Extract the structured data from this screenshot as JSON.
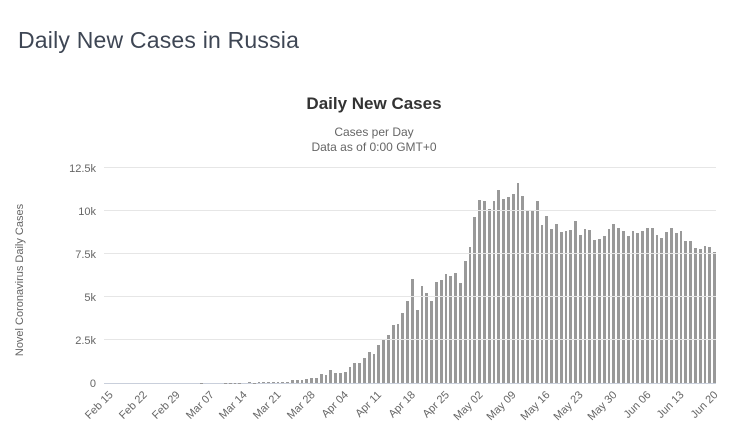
{
  "page": {
    "title": "Daily New Cases in Russia"
  },
  "chart": {
    "title": "Daily New Cases",
    "subtitle_line1": "Cases per Day",
    "subtitle_line2": "Data as of 0:00 GMT+0",
    "y_axis_title": "Novel Coronavirus Daily Cases"
  },
  "chart_data": {
    "type": "bar",
    "title": "Daily New Cases",
    "subtitle": [
      "Cases per Day",
      "Data as of 0:00 GMT+0"
    ],
    "ylabel": "Novel Coronavirus Daily Cases",
    "xlabel": "",
    "ylim": [
      0,
      12500
    ],
    "grid": true,
    "legend": "none",
    "bar_color": "#999999",
    "grid_color": "#e6e6e6",
    "axis_line_color": "#c9cfdb",
    "yticks": [
      {
        "value": 0,
        "label": "0"
      },
      {
        "value": 2500,
        "label": "2.5k"
      },
      {
        "value": 5000,
        "label": "5k"
      },
      {
        "value": 7500,
        "label": "7.5k"
      },
      {
        "value": 10000,
        "label": "10k"
      },
      {
        "value": 12500,
        "label": "12.5k"
      }
    ],
    "xticks": [
      {
        "index": 0,
        "label": "Feb 15"
      },
      {
        "index": 7,
        "label": "Feb 22"
      },
      {
        "index": 14,
        "label": "Feb 29"
      },
      {
        "index": 21,
        "label": "Mar 07"
      },
      {
        "index": 28,
        "label": "Mar 14"
      },
      {
        "index": 35,
        "label": "Mar 21"
      },
      {
        "index": 42,
        "label": "Mar 28"
      },
      {
        "index": 49,
        "label": "Apr 04"
      },
      {
        "index": 56,
        "label": "Apr 11"
      },
      {
        "index": 63,
        "label": "Apr 18"
      },
      {
        "index": 70,
        "label": "Apr 25"
      },
      {
        "index": 77,
        "label": "May 02"
      },
      {
        "index": 84,
        "label": "May 09"
      },
      {
        "index": 91,
        "label": "May 16"
      },
      {
        "index": 98,
        "label": "May 23"
      },
      {
        "index": 105,
        "label": "May 30"
      },
      {
        "index": 112,
        "label": "Jun 06"
      },
      {
        "index": 119,
        "label": "Jun 13"
      },
      {
        "index": 126,
        "label": "Jun 20"
      }
    ],
    "values": [
      0,
      0,
      0,
      0,
      0,
      0,
      0,
      0,
      3,
      0,
      0,
      0,
      0,
      0,
      0,
      0,
      3,
      0,
      0,
      3,
      6,
      1,
      3,
      3,
      0,
      8,
      6,
      11,
      14,
      4,
      30,
      21,
      33,
      52,
      54,
      53,
      61,
      71,
      57,
      163,
      182,
      196,
      228,
      270,
      302,
      501,
      440,
      771,
      601,
      582,
      658,
      954,
      1154,
      1175,
      1459,
      1786,
      1667,
      2186,
      2558,
      2774,
      3388,
      3448,
      4070,
      4785,
      6060,
      4268,
      5642,
      5236,
      4774,
      5849,
      5966,
      6361,
      6198,
      6411,
      5841,
      7099,
      7933,
      9623,
      10633,
      10581,
      10102,
      10559,
      11231,
      10699,
      10817,
      11012,
      11656,
      10899,
      10028,
      9974,
      10598,
      9200,
      9709,
      8926,
      9263,
      8764,
      8849,
      8894,
      9434,
      8599,
      8946,
      8915,
      8338,
      8371,
      8572,
      8952,
      9268,
      9035,
      8863,
      8536,
      8831,
      8726,
      8855,
      8984,
      8985,
      8595,
      8404,
      8779,
      8987,
      8706,
      8835,
      8246,
      8248,
      7843,
      7790,
      7972,
      7889,
      7600
    ]
  }
}
